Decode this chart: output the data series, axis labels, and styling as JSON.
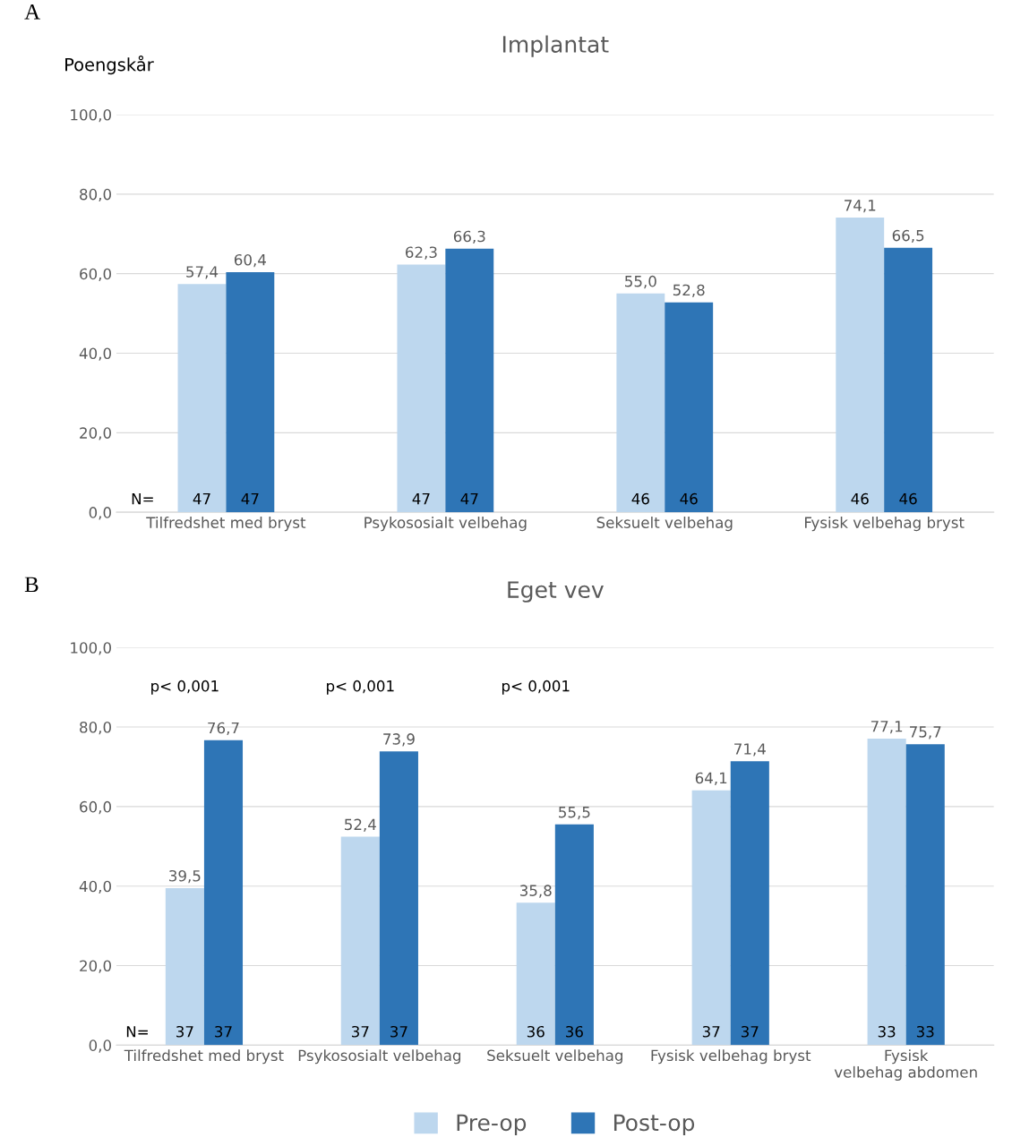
{
  "chart_data": [
    {
      "type": "bar",
      "title": "Implantat",
      "ylabel": "Poengskår",
      "categories": [
        "Tilfredshet med bryst",
        "Psykososialt velbehag",
        "Seksuelt velbehag",
        "Fysisk velbehag bryst"
      ],
      "series": [
        {
          "color": "#bdd7ee",
          "values": [
            57.4,
            62.3,
            55.0,
            74.1
          ],
          "value_labels": [
            "57,4",
            "62,3",
            "55,0",
            "74,1"
          ]
        },
        {
          "color": "#2e75b6",
          "values": [
            60.4,
            66.3,
            52.8,
            66.5
          ],
          "value_labels": [
            "60,4",
            "66,3",
            "52,8",
            "66,5"
          ]
        }
      ],
      "ylim": [
        0,
        100
      ],
      "yticks": [
        {
          "value": 0,
          "label": "0,0"
        },
        {
          "value": 20,
          "label": "20,0"
        },
        {
          "value": 40,
          "label": "40,0"
        },
        {
          "value": 60,
          "label": "60,0"
        },
        {
          "value": 80,
          "label": "80,0"
        },
        {
          "value": 100,
          "label": "100,0"
        }
      ],
      "grid": "y",
      "legend": false,
      "annotations": [
        "A",
        "N=",
        {
          "text": "47",
          "x": "Tilfredshet med bryst",
          "y": 0
        },
        {
          "text": "47",
          "x": "Tilfredshet med bryst",
          "y": 0
        },
        {
          "text": "47",
          "x": "Psykososialt velbehag",
          "y": 0
        },
        {
          "text": "47",
          "x": "Psykososialt velbehag",
          "y": 0
        },
        {
          "text": "46",
          "x": "Seksuelt velbehag",
          "y": 0
        },
        {
          "text": "46",
          "x": "Seksuelt velbehag",
          "y": 0
        },
        {
          "text": "46",
          "x": "Fysisk velbehag bryst",
          "y": 0
        },
        {
          "text": "46",
          "x": "Fysisk velbehag bryst",
          "y": 0
        }
      ]
    },
    {
      "type": "bar",
      "title": "Eget vev",
      "categories": [
        "Tilfredshet med bryst",
        "Psykososialt velbehag",
        "Seksuelt velbehag",
        "Fysisk velbehag bryst",
        "Fysisk velbehag abdomen"
      ],
      "series": [
        {
          "name": "Pre-op",
          "color": "#bdd7ee",
          "values": [
            39.5,
            52.4,
            35.8,
            64.1,
            77.1
          ],
          "value_labels": [
            "39,5",
            "52,4",
            "35,8",
            "64,1",
            "77,1"
          ]
        },
        {
          "name": "Post-op",
          "color": "#2e75b6",
          "values": [
            76.7,
            73.9,
            55.5,
            71.4,
            75.7
          ],
          "value_labels": [
            "76,7",
            "73,9",
            "55,5",
            "71,4",
            "75,7"
          ]
        }
      ],
      "ylim": [
        0,
        100
      ],
      "yticks": [
        {
          "value": 0,
          "label": "0,0"
        },
        {
          "value": 20,
          "label": "20,0"
        },
        {
          "value": 40,
          "label": "40,0"
        },
        {
          "value": 60,
          "label": "60,0"
        },
        {
          "value": 80,
          "label": "80,0"
        },
        {
          "value": 100,
          "label": "100,0"
        }
      ],
      "grid": "y",
      "legend": "bottom",
      "annotations": [
        "B",
        "N=",
        {
          "text": "37",
          "x": "Tilfredshet med bryst",
          "y": 0
        },
        {
          "text": "37",
          "x": "Tilfredshet med bryst",
          "y": 0
        },
        {
          "text": "37",
          "x": "Psykososialt velbehag",
          "y": 0
        },
        {
          "text": "37",
          "x": "Psykososialt velbehag",
          "y": 0
        },
        {
          "text": "36",
          "x": "Seksuelt velbehag",
          "y": 0
        },
        {
          "text": "36",
          "x": "Seksuelt velbehag",
          "y": 0
        },
        {
          "text": "37",
          "x": "Fysisk velbehag bryst",
          "y": 0
        },
        {
          "text": "37",
          "x": "Fysisk velbehag bryst",
          "y": 0
        },
        {
          "text": "33",
          "x": "Fysisk velbehag abdomen",
          "y": 0
        },
        {
          "text": "33",
          "x": "Fysisk velbehag abdomen",
          "y": 0
        },
        "p< 0,001",
        "p< 0,001",
        "p< 0,001"
      ]
    }
  ]
}
